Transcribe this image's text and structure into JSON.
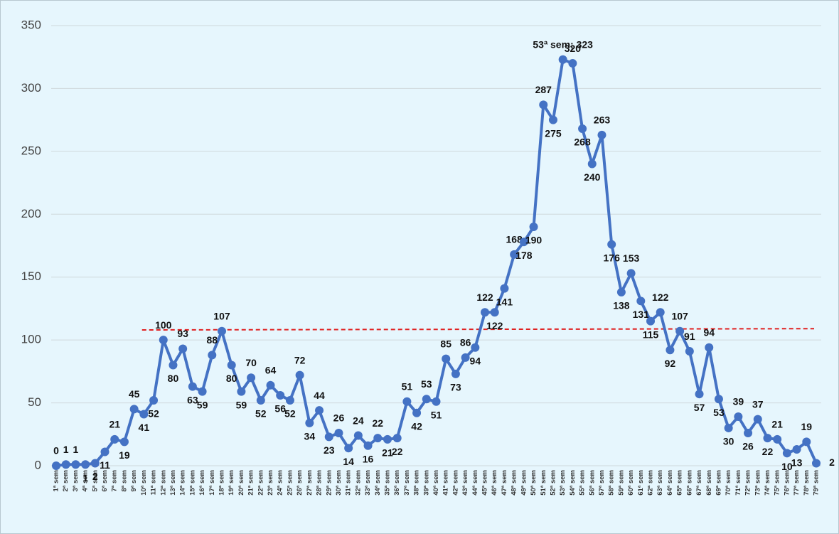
{
  "chart_data": {
    "type": "line",
    "categories": [
      "1ª sem",
      "2ª sem",
      "3ª sem",
      "4ª sem",
      "5ª sem",
      "6ª sem",
      "7ª sem",
      "8ª sem",
      "9ª sem",
      "10ª sem",
      "11ª sem",
      "12ª sem",
      "13ª sem",
      "14ª sem",
      "15ª sem",
      "16ª sem",
      "17ª sem",
      "18ª sem",
      "19ª sem",
      "20ª sem",
      "21ª sem",
      "22ª sem",
      "23ª sem",
      "24ª sem",
      "25ª sem",
      "26ª sem",
      "27ª sem",
      "28ª sem",
      "29ª sem",
      "30ª sem",
      "31ª sem",
      "32ª sem",
      "33ª sem",
      "34ª sem",
      "35ª sem",
      "36ª sem",
      "37ª sem",
      "38ª sem",
      "39ª sem",
      "40ª sem",
      "41ª sem",
      "42ª sem",
      "43ª sem",
      "44ª sem",
      "45ª sem",
      "46ª sem",
      "47ª sem",
      "48ª sem",
      "49ª sem",
      "50ª sem",
      "51ª sem",
      "52ª sem",
      "53ª sem",
      "54ª sem",
      "55ª sem",
      "56ª sem",
      "57ª sem",
      "58ª sem",
      "59ª sem",
      "60ª sem",
      "61ª sem",
      "62ª sem",
      "63ª sem",
      "64ª sem",
      "65ª sem",
      "66ª sem",
      "67ª sem",
      "68ª sem",
      "69ª sem",
      "70ª sem",
      "71ª sem",
      "72ª sem",
      "73ª sem",
      "74ª sem",
      "75ª sem",
      "76ª sem",
      "77ª sem",
      "78ª sem",
      "79ª sem"
    ],
    "values": [
      0,
      1,
      1,
      1,
      2,
      11,
      21,
      19,
      45,
      41,
      52,
      100,
      80,
      93,
      63,
      59,
      88,
      107,
      80,
      59,
      70,
      52,
      64,
      56,
      52,
      72,
      34,
      44,
      23,
      26,
      14,
      24,
      16,
      22,
      21,
      22,
      51,
      42,
      53,
      51,
      85,
      73,
      86,
      94,
      122,
      122,
      141,
      168,
      178,
      190,
      287,
      275,
      323,
      320,
      268,
      240,
      263,
      176,
      138,
      153,
      131,
      115,
      122,
      92,
      107,
      91,
      57,
      94,
      53,
      30,
      39,
      26,
      37,
      22,
      21,
      10,
      13,
      19,
      2
    ],
    "value_labels": [
      "0",
      "1",
      "1",
      "1",
      "2",
      "11",
      "21",
      "19",
      "45",
      "41",
      "52",
      "100",
      "80",
      "93",
      "63",
      "59",
      "88",
      "107",
      "80",
      "59",
      "70",
      "52",
      "64",
      "56",
      "52",
      "72",
      "34",
      "44",
      "23",
      "26",
      "14",
      "24",
      "16",
      "22",
      "21",
      "22",
      "51",
      "42",
      "53",
      "51",
      "85",
      "73",
      "86",
      "94",
      "122",
      "122",
      "141",
      "168",
      "178",
      "190",
      "287",
      "275",
      "53ª sem; 323",
      "320",
      "268",
      "240",
      "263",
      "176",
      "138",
      "153",
      "131",
      "115",
      "122",
      "92",
      "107",
      "91",
      "57",
      "94",
      "53",
      "30",
      "39",
      "26",
      "37",
      "22",
      "21",
      "10",
      "13",
      "19",
      "2"
    ],
    "color": "#4472c4",
    "ylim": [
      0,
      350
    ],
    "yticks": [
      0,
      50,
      100,
      150,
      200,
      250,
      300,
      350
    ],
    "grid": true,
    "reference_line": {
      "values": [
        108,
        109
      ],
      "color": "#e02020"
    }
  }
}
